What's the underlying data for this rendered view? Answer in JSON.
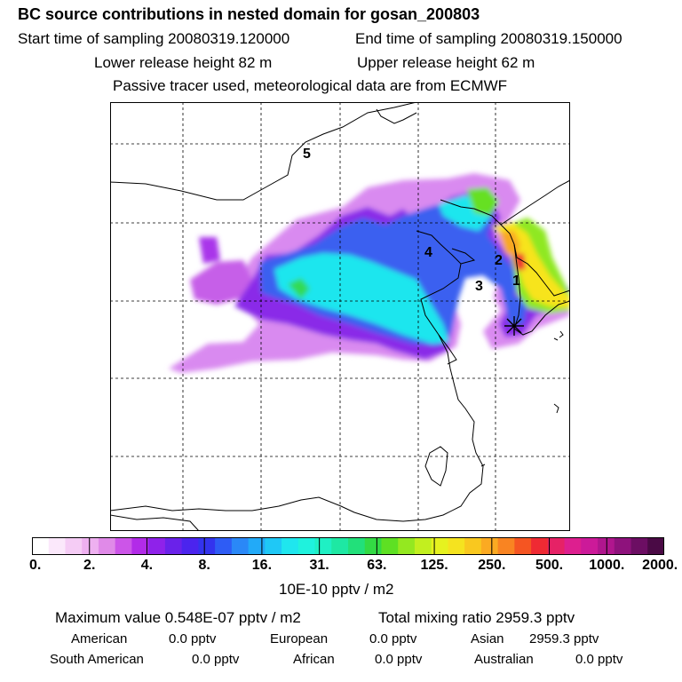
{
  "header": {
    "title": "BC  source contributions in nested domain for gosan_200803",
    "start_time": "Start time of sampling 20080319.120000",
    "end_time": "End time of sampling 20080319.150000",
    "lower_release": "Lower release height   82 m",
    "upper_release": "Upper release height   62 m",
    "tracer_note": "Passive tracer used, meteorological data are from ECMWF"
  },
  "map": {
    "labels": [
      "5",
      "4",
      "2",
      "3",
      "1"
    ],
    "station_marker": "star-icon"
  },
  "colorbar": {
    "tick_labels": [
      "0.",
      "2.",
      "4.",
      "8.",
      "16.",
      "31.",
      "63.",
      "125.",
      "250.",
      "500.",
      "1000.",
      "2000."
    ],
    "colors": [
      "#ffffff",
      "#fbe8fb",
      "#f5ccf5",
      "#eeb0f0",
      "#e08ae8",
      "#cc55e8",
      "#b22be8",
      "#8f22ea",
      "#6a22ea",
      "#4b24ee",
      "#3333ee",
      "#2e5cf5",
      "#2a88f7",
      "#22aaf8",
      "#1fc8f6",
      "#1fe6ee",
      "#1ff2dd",
      "#1ff0c4",
      "#1ee8a3",
      "#22e07a",
      "#33da44",
      "#5ee023",
      "#94e820",
      "#c2ef1f",
      "#e6f21f",
      "#f5e31f",
      "#f9c81f",
      "#fbaa22",
      "#f98422",
      "#f55522",
      "#ef2a33",
      "#e62266",
      "#dd1f8f",
      "#cc1a99",
      "#b0168e",
      "#8e127c",
      "#6c0e63",
      "#4a0a45"
    ],
    "units": "10E-10 pptv / m2"
  },
  "stats": {
    "maximum": "Maximum value  0.548E-07 pptv / m2",
    "total": "Total mixing ratio     2959.3 pptv",
    "american_label": "American",
    "american_value": "0.0 pptv",
    "european_label": "European",
    "european_value": "0.0 pptv",
    "asian_label": "Asian",
    "asian_value": "2959.3 pptv",
    "south_american_label": "South American",
    "south_american_value": "0.0 pptv",
    "african_label": "African",
    "african_value": "0.0 pptv",
    "australian_label": "Australian",
    "australian_value": "0.0 pptv"
  }
}
